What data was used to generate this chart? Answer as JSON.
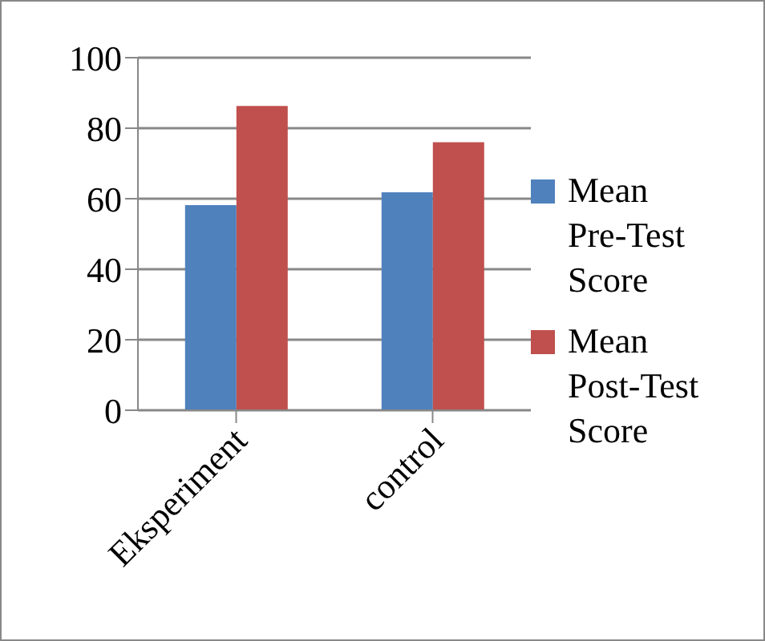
{
  "chart_data": {
    "type": "bar",
    "categories": [
      "Eksperiment",
      "control"
    ],
    "series": [
      {
        "name": "Mean Pre-Test Score",
        "color": "#4f81bd",
        "values": [
          58.2,
          61.8
        ]
      },
      {
        "name": "Mean Post-Test Score",
        "color": "#c0504d",
        "values": [
          86.3,
          76.0
        ]
      }
    ],
    "ylim": [
      0,
      100
    ],
    "yticks": [
      0,
      20,
      40,
      60,
      80,
      100
    ],
    "grid": "y",
    "legend": "right"
  }
}
